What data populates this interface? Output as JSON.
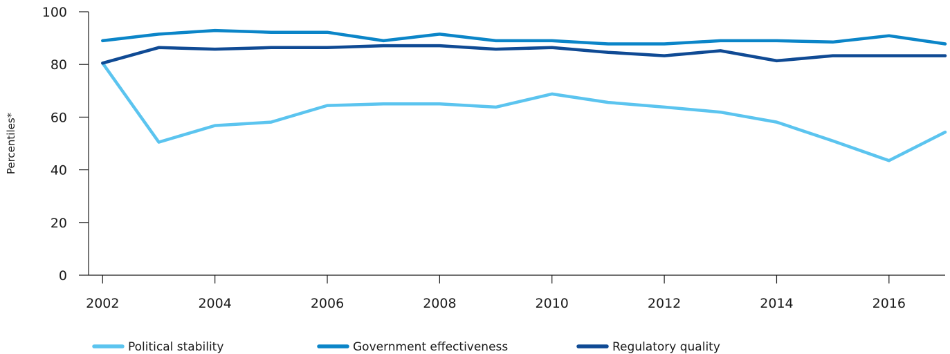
{
  "chart_data": {
    "type": "line",
    "title": "",
    "xlabel": "",
    "ylabel": "Percentiles*",
    "x": [
      2002,
      2003,
      2004,
      2005,
      2006,
      2007,
      2008,
      2009,
      2010,
      2011,
      2012,
      2013,
      2014,
      2015,
      2016,
      2017
    ],
    "xlim": [
      2001.75,
      2017
    ],
    "ylim": [
      0,
      100
    ],
    "xticks": [
      "2002",
      "2004",
      "2006",
      "2008",
      "2010",
      "2012",
      "2014",
      "2016"
    ],
    "yticks": [
      "0",
      "20",
      "40",
      "60",
      "80",
      "100"
    ],
    "grid": false,
    "legend": "bottom",
    "series": [
      {
        "name": "Political stability",
        "color": "#5bc4ef",
        "values": [
          80.5,
          50.5,
          56.8,
          58.1,
          64.4,
          65.0,
          65.0,
          63.8,
          68.8,
          65.6,
          63.8,
          61.9,
          58.1,
          51.0,
          43.5,
          54.3
        ]
      },
      {
        "name": "Government effectiveness",
        "color": "#0b85c8",
        "values": [
          89.0,
          91.5,
          92.9,
          92.2,
          92.2,
          89.0,
          91.5,
          89.0,
          89.0,
          87.8,
          87.8,
          89.0,
          89.0,
          88.5,
          90.9,
          87.8
        ]
      },
      {
        "name": "Regulatory quality",
        "color": "#0f4a94",
        "values": [
          80.5,
          86.4,
          85.8,
          86.4,
          86.4,
          87.1,
          87.1,
          85.8,
          86.4,
          84.6,
          83.3,
          85.2,
          81.4,
          83.3,
          83.3,
          83.3
        ]
      }
    ]
  }
}
